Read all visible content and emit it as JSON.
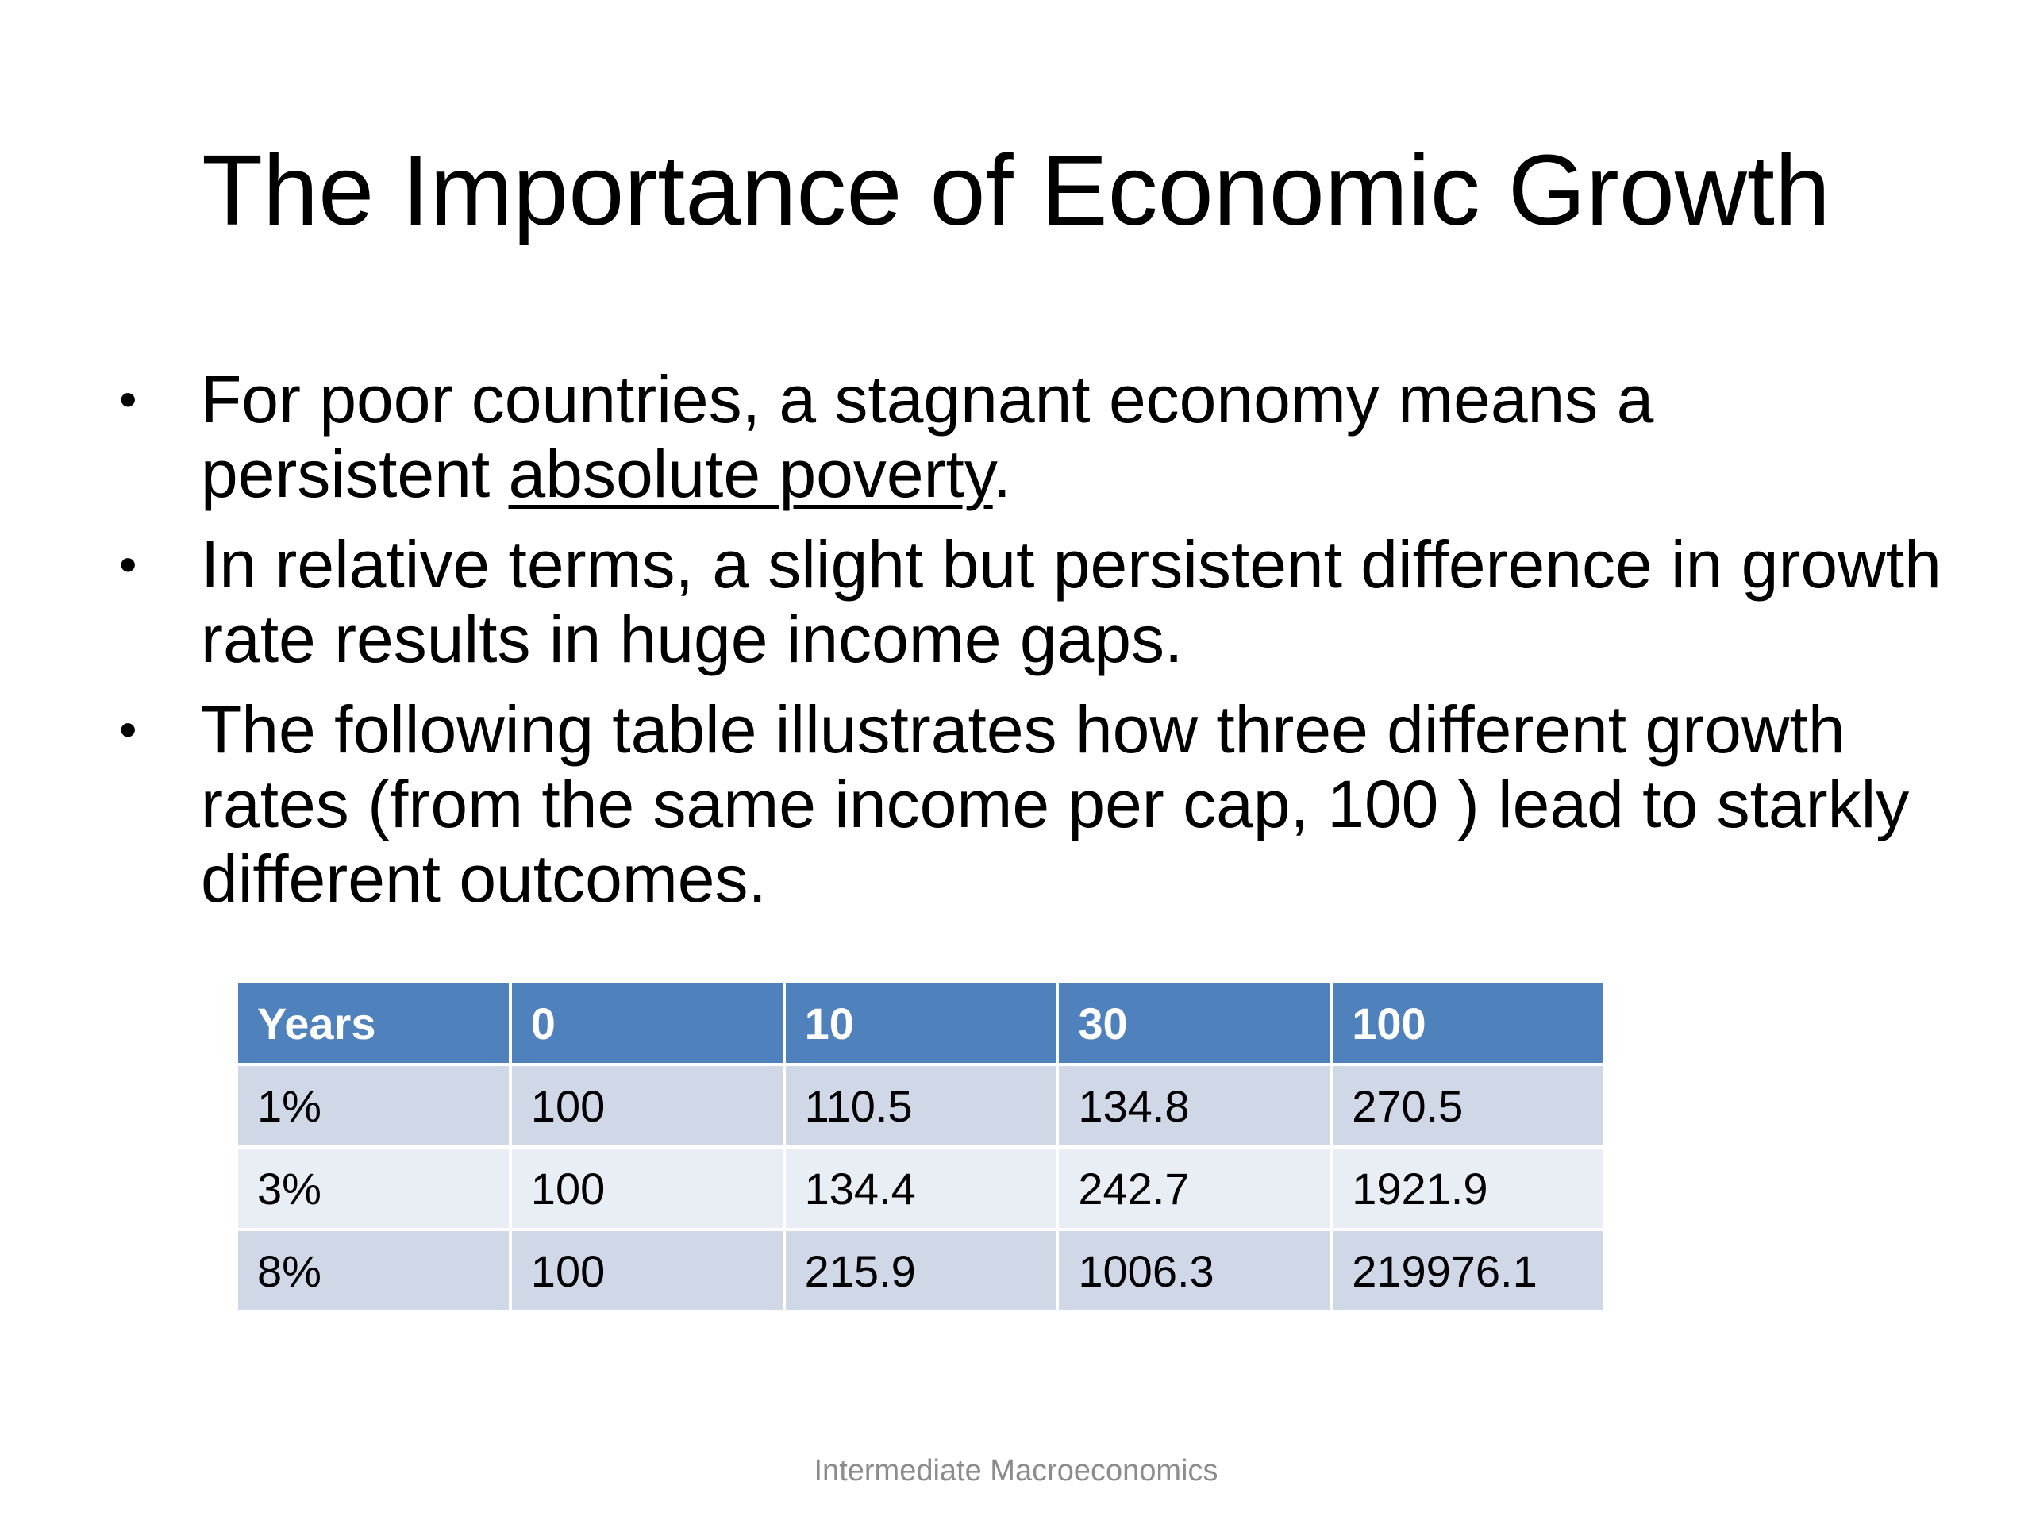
{
  "slide": {
    "title": "The Importance of Economic Growth",
    "bullets": [
      {
        "text_before": "For poor countries, a stagnant economy means a persistent ",
        "underlined": "absolute poverty",
        "text_after": "."
      },
      {
        "text": "In relative terms, a slight but persistent difference in growth rate results in huge income gaps."
      },
      {
        "text": "The following table illustrates how three different growth rates (from the same income per cap, 100 ) lead to starkly different outcomes."
      }
    ],
    "bullet_symbol": "•",
    "table": {
      "headers": [
        "Years",
        "0",
        "10",
        "30",
        "100"
      ],
      "rows": [
        [
          "1%",
          "100",
          "110.5",
          "134.8",
          "270.5"
        ],
        [
          "3%",
          "100",
          "134.4",
          "242.7",
          "1921.9"
        ],
        [
          "8%",
          "100",
          "215.9",
          "1006.3",
          "219976.1"
        ]
      ]
    },
    "footer": "Intermediate Macroeconomics",
    "colors": {
      "header_bg": "#4f81bd",
      "row_odd_bg": "#d0d8e8",
      "row_even_bg": "#e9edf4",
      "footer_text": "#8c8c8c"
    }
  }
}
